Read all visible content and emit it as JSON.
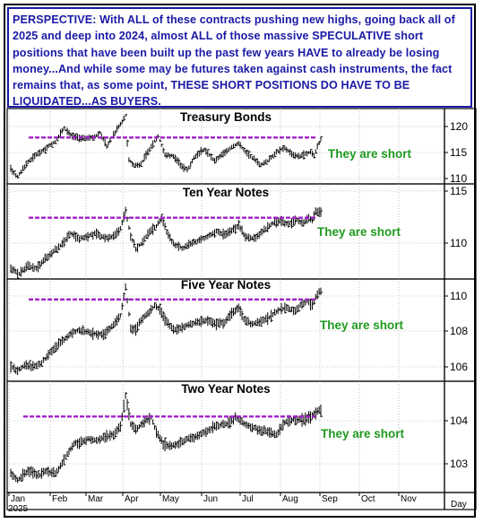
{
  "commentary": "PERSPECTIVE: With ALL of these contracts pushing new highs, going back all of 2025 and deep into 2024, almost ALL of those massive SPECULATIVE short positions that have been built up the past few years HAVE to already be losing money...And while some may be futures taken against cash instruments, the fact remains that, as some point, THESE SHORT POSITIONS DO HAVE TO BE LIQUIDATED...AS BUYERS.",
  "colors": {
    "commentary_text": "#1a1aa6",
    "resistance_line": "#a020c8",
    "annotation": "#1f9a1f",
    "grid": "#9a9a9a"
  },
  "chart_data": [
    {
      "type": "bar",
      "title": "Treasury Bonds",
      "annotation": "They are short",
      "yticks": [
        "120",
        "115",
        "110"
      ],
      "ylim": [
        110,
        123
      ],
      "resistance_level": 118,
      "anchors": [
        [
          0,
          112.5
        ],
        [
          8,
          111.2
        ],
        [
          18,
          113.5
        ],
        [
          28,
          114.8
        ],
        [
          40,
          116.0
        ],
        [
          52,
          117.3
        ],
        [
          62,
          119.6
        ],
        [
          72,
          118.2
        ],
        [
          82,
          117.8
        ],
        [
          96,
          118.0
        ],
        [
          104,
          118.8
        ],
        [
          112,
          116.5
        ],
        [
          124,
          119.5
        ],
        [
          130,
          120.8
        ],
        [
          134,
          121.8
        ],
        [
          137,
          114.5
        ],
        [
          143,
          113.2
        ],
        [
          152,
          113.4
        ],
        [
          162,
          116.0
        ],
        [
          172,
          118.3
        ],
        [
          180,
          115.0
        ],
        [
          190,
          114.8
        ],
        [
          200,
          113.0
        ],
        [
          206,
          112.4
        ],
        [
          214,
          114.5
        ],
        [
          226,
          116.0
        ],
        [
          238,
          114.0
        ],
        [
          246,
          115.0
        ],
        [
          256,
          116.2
        ],
        [
          266,
          117.0
        ],
        [
          274,
          115.5
        ],
        [
          284,
          114.3
        ],
        [
          292,
          113.2
        ],
        [
          300,
          114.0
        ],
        [
          310,
          115.5
        ],
        [
          320,
          116.2
        ],
        [
          330,
          115.0
        ],
        [
          338,
          114.8
        ],
        [
          346,
          115.3
        ],
        [
          350,
          115.5
        ],
        [
          354,
          114.8
        ],
        [
          358,
          116.5
        ],
        [
          362,
          117.7
        ]
      ]
    },
    {
      "type": "bar",
      "title": "Ten Year Notes",
      "annotation": "They are short",
      "yticks": [
        "115",
        "110"
      ],
      "ylim": [
        107,
        116
      ],
      "resistance_level": 112.8,
      "anchors": [
        [
          0,
          108.0
        ],
        [
          10,
          107.5
        ],
        [
          20,
          108.3
        ],
        [
          30,
          108.0
        ],
        [
          40,
          108.9
        ],
        [
          50,
          109.6
        ],
        [
          60,
          110.3
        ],
        [
          70,
          111.3
        ],
        [
          80,
          110.8
        ],
        [
          90,
          111.1
        ],
        [
          100,
          111.3
        ],
        [
          110,
          110.9
        ],
        [
          120,
          111.0
        ],
        [
          128,
          111.8
        ],
        [
          134,
          113.5
        ],
        [
          140,
          111.0
        ],
        [
          146,
          109.9
        ],
        [
          152,
          110.3
        ],
        [
          160,
          111.3
        ],
        [
          170,
          112.0
        ],
        [
          176,
          112.8
        ],
        [
          182,
          111.5
        ],
        [
          190,
          110.3
        ],
        [
          200,
          109.9
        ],
        [
          210,
          110.3
        ],
        [
          220,
          110.7
        ],
        [
          230,
          111.0
        ],
        [
          240,
          111.5
        ],
        [
          250,
          111.2
        ],
        [
          260,
          111.7
        ],
        [
          266,
          112.0
        ],
        [
          274,
          111.0
        ],
        [
          284,
          110.8
        ],
        [
          294,
          111.5
        ],
        [
          304,
          112.2
        ],
        [
          314,
          112.5
        ],
        [
          324,
          112.2
        ],
        [
          334,
          112.6
        ],
        [
          342,
          112.3
        ],
        [
          348,
          112.8
        ],
        [
          352,
          112.5
        ],
        [
          356,
          113.4
        ],
        [
          360,
          113.3
        ]
      ]
    },
    {
      "type": "bar",
      "title": "Five Year Notes",
      "annotation": "They are short",
      "yticks": [
        "110",
        "108",
        "106"
      ],
      "ylim": [
        105.5,
        110.5
      ],
      "resistance_level": 109.5,
      "anchors": [
        [
          0,
          106.2
        ],
        [
          8,
          106.0
        ],
        [
          16,
          106.3
        ],
        [
          26,
          106.2
        ],
        [
          36,
          106.4
        ],
        [
          46,
          106.9
        ],
        [
          56,
          107.3
        ],
        [
          64,
          107.6
        ],
        [
          72,
          107.9
        ],
        [
          80,
          108.0
        ],
        [
          90,
          107.9
        ],
        [
          100,
          107.8
        ],
        [
          110,
          107.8
        ],
        [
          120,
          108.3
        ],
        [
          128,
          108.7
        ],
        [
          134,
          110.1
        ],
        [
          140,
          108.1
        ],
        [
          146,
          108.0
        ],
        [
          152,
          108.5
        ],
        [
          160,
          108.8
        ],
        [
          168,
          109.2
        ],
        [
          174,
          109.0
        ],
        [
          180,
          108.5
        ],
        [
          190,
          108.0
        ],
        [
          200,
          108.1
        ],
        [
          210,
          108.3
        ],
        [
          220,
          108.4
        ],
        [
          230,
          108.5
        ],
        [
          240,
          108.3
        ],
        [
          250,
          108.4
        ],
        [
          260,
          108.9
        ],
        [
          266,
          109.1
        ],
        [
          272,
          108.5
        ],
        [
          282,
          108.3
        ],
        [
          292,
          108.4
        ],
        [
          302,
          108.6
        ],
        [
          312,
          109.0
        ],
        [
          322,
          109.1
        ],
        [
          332,
          108.9
        ],
        [
          340,
          109.3
        ],
        [
          346,
          109.4
        ],
        [
          352,
          109.2
        ],
        [
          356,
          109.6
        ],
        [
          360,
          109.9
        ]
      ]
    },
    {
      "type": "bar",
      "title": "Two Year Notes",
      "annotation": "They are short",
      "yticks": [
        "104",
        "103"
      ],
      "ylim": [
        102.5,
        104.8
      ],
      "resistance_level": 104.07,
      "anchors": [
        [
          0,
          102.9
        ],
        [
          8,
          102.75
        ],
        [
          16,
          102.9
        ],
        [
          24,
          102.95
        ],
        [
          32,
          102.85
        ],
        [
          42,
          102.95
        ],
        [
          52,
          102.9
        ],
        [
          58,
          103.05
        ],
        [
          66,
          103.3
        ],
        [
          74,
          103.5
        ],
        [
          82,
          103.55
        ],
        [
          90,
          103.6
        ],
        [
          100,
          103.6
        ],
        [
          110,
          103.65
        ],
        [
          120,
          103.7
        ],
        [
          128,
          103.85
        ],
        [
          134,
          104.5
        ],
        [
          140,
          103.9
        ],
        [
          146,
          103.8
        ],
        [
          152,
          103.9
        ],
        [
          158,
          104.0
        ],
        [
          164,
          104.05
        ],
        [
          170,
          103.75
        ],
        [
          178,
          103.5
        ],
        [
          186,
          103.45
        ],
        [
          196,
          103.5
        ],
        [
          206,
          103.6
        ],
        [
          216,
          103.65
        ],
        [
          226,
          103.75
        ],
        [
          236,
          103.85
        ],
        [
          246,
          103.9
        ],
        [
          256,
          103.95
        ],
        [
          262,
          104.05
        ],
        [
          270,
          103.95
        ],
        [
          280,
          103.85
        ],
        [
          290,
          103.8
        ],
        [
          300,
          103.75
        ],
        [
          310,
          103.7
        ],
        [
          320,
          103.95
        ],
        [
          330,
          104.0
        ],
        [
          340,
          104.0
        ],
        [
          348,
          104.05
        ],
        [
          354,
          104.1
        ],
        [
          360,
          104.2
        ]
      ]
    }
  ],
  "x_axis": {
    "months": [
      "Jan",
      "Feb",
      "Mar",
      "Apr",
      "May",
      "Jun",
      "Jul",
      "Aug",
      "Sep",
      "Oct",
      "Nov"
    ],
    "year": "2025",
    "unit_label": "Day"
  }
}
